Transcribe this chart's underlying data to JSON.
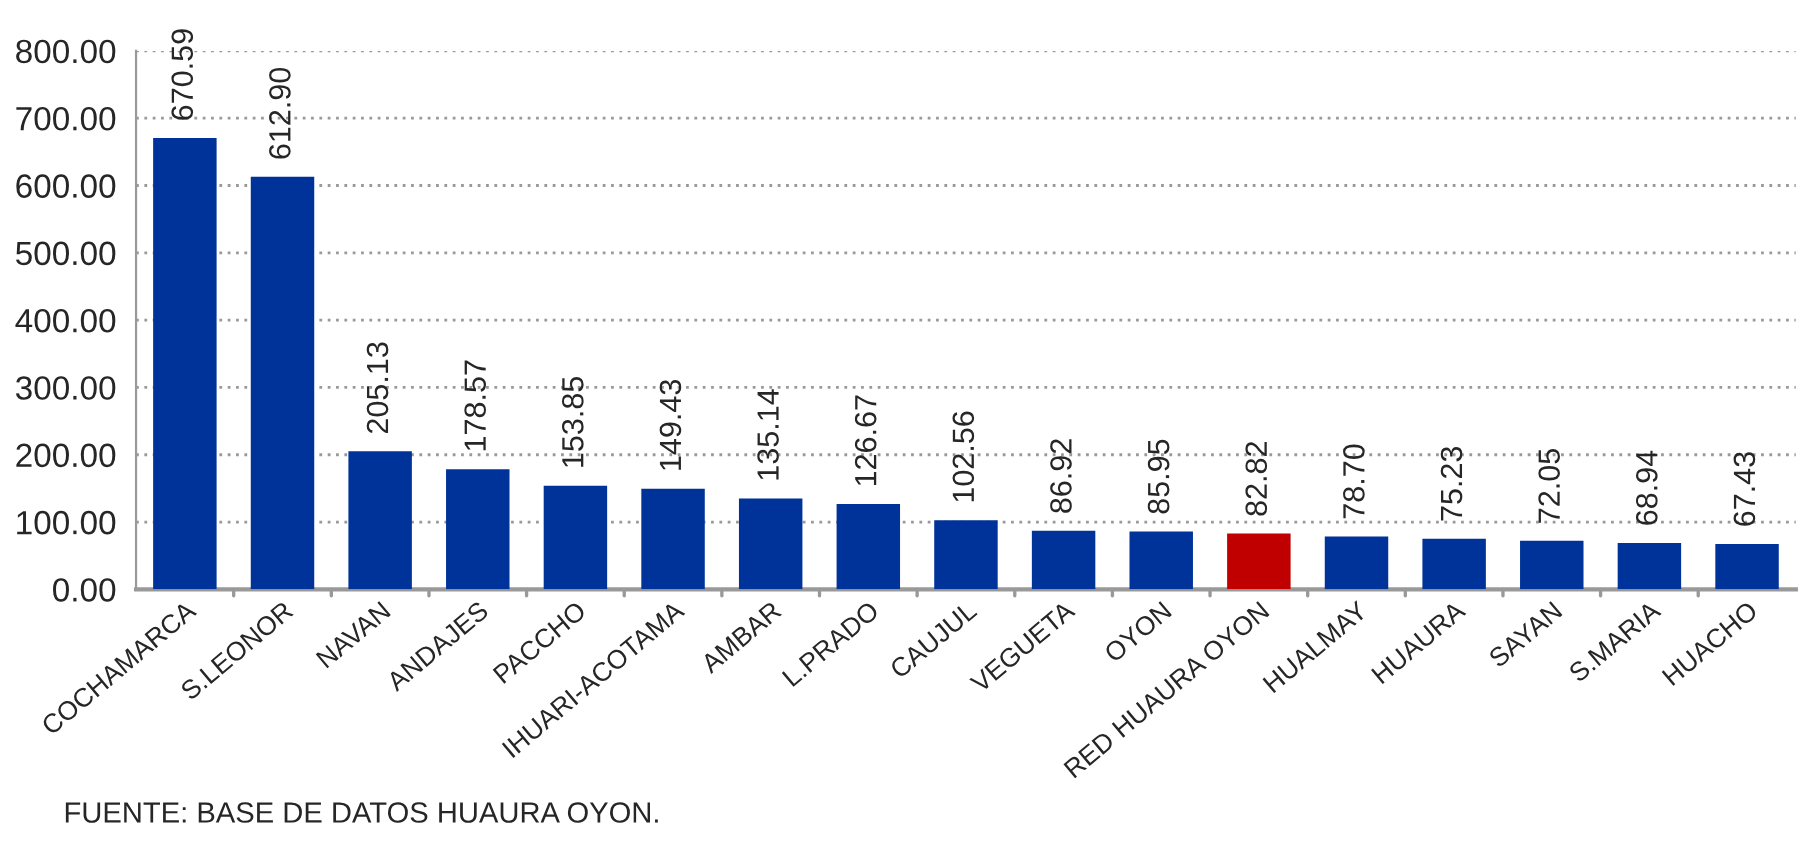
{
  "chart_data": {
    "type": "bar",
    "categories": [
      "COCHAMARCA",
      "S.LEONOR",
      "NAVAN",
      "ANDAJES",
      "PACCHO",
      "IHUARI-ACOTAMA",
      "AMBAR",
      "L.PRADO",
      "CAUJUL",
      "VEGUETA",
      "OYON",
      "RED HUAURA OYON",
      "HUALMAY",
      "HUAURA",
      "SAYAN",
      "S.MARIA",
      "HUACHO"
    ],
    "values": [
      670.59,
      612.9,
      205.13,
      178.57,
      153.85,
      149.43,
      135.14,
      126.67,
      102.56,
      86.92,
      85.95,
      82.82,
      78.7,
      75.23,
      72.05,
      68.94,
      67.43
    ],
    "colors": [
      "#003399",
      "#003399",
      "#003399",
      "#003399",
      "#003399",
      "#003399",
      "#003399",
      "#003399",
      "#003399",
      "#003399",
      "#003399",
      "#c00000",
      "#003399",
      "#003399",
      "#003399",
      "#003399",
      "#003399"
    ],
    "value_labels": [
      "670.59",
      "612.90",
      "205.13",
      "178.57",
      "153.85",
      "149.43",
      "135.14",
      "126.67",
      "102.56",
      "86.92",
      "85.95",
      "82.82",
      "78.70",
      "75.23",
      "72.05",
      "68.94",
      "67.43"
    ],
    "ylim": [
      0,
      800
    ],
    "yticks": [
      {
        "value": 0,
        "label": "0.00"
      },
      {
        "value": 100,
        "label": "100.00"
      },
      {
        "value": 200,
        "label": "200.00"
      },
      {
        "value": 300,
        "label": "300.00"
      },
      {
        "value": 400,
        "label": "400.00"
      },
      {
        "value": 500,
        "label": "500.00"
      },
      {
        "value": 600,
        "label": "600.00"
      },
      {
        "value": 700,
        "label": "700.00"
      },
      {
        "value": 800,
        "label": "800.00"
      }
    ],
    "grid": "y",
    "annotations": [
      "FUENTE: BASE DE DATOS HUAURA OYON."
    ]
  }
}
